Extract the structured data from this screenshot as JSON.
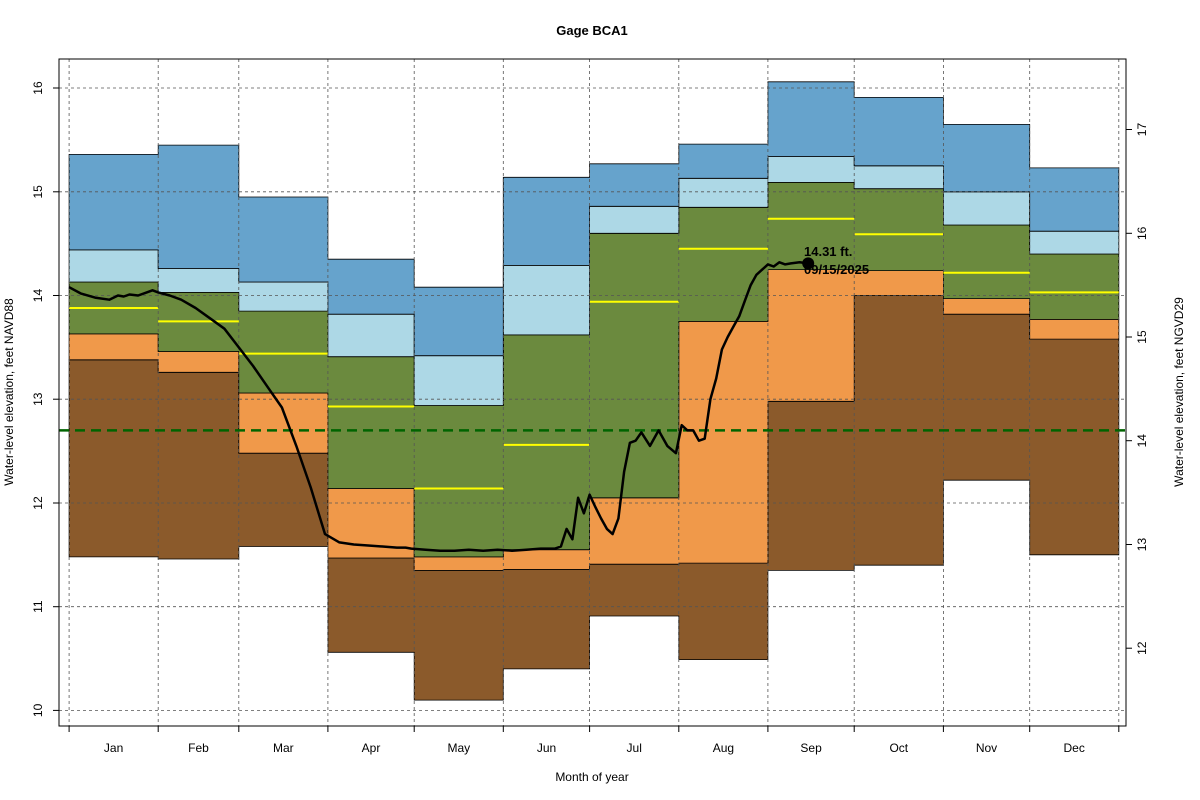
{
  "chart_data": {
    "type": "area",
    "title": "Gage BCA1",
    "xlabel": "Month of year",
    "ylabel": "Water-level elevation, feet NAVD88",
    "ylabel_right": "Water-level elevation, feet NGVD29",
    "categories": [
      "Jan",
      "Feb",
      "Mar",
      "Apr",
      "May",
      "Jun",
      "Jul",
      "Aug",
      "Sep",
      "Oct",
      "Nov",
      "Dec"
    ],
    "month_boundaries_doy": [
      1,
      32,
      60,
      91,
      121,
      152,
      182,
      213,
      244,
      274,
      305,
      335,
      366
    ],
    "ylim": [
      9.85,
      16.28
    ],
    "yticks": [
      10,
      11,
      12,
      13,
      14,
      15,
      16
    ],
    "y2_offset": 1.4,
    "y2ticks": [
      12,
      13,
      14,
      15,
      16,
      17
    ],
    "grid": true,
    "band_colors": [
      "#8b5a2b",
      "#f0994a",
      "#6b8a3e",
      "#add8e6",
      "#66a3cc"
    ],
    "median_color": "#ffff00",
    "reference_line": {
      "value": 12.7,
      "color": "#006400"
    },
    "bands": [
      {
        "month": "Jan",
        "b": [
          11.48,
          13.38,
          13.63,
          14.13,
          14.44,
          15.36
        ],
        "median": 13.88
      },
      {
        "month": "Feb",
        "b": [
          11.46,
          13.26,
          13.46,
          14.03,
          14.26,
          15.45
        ],
        "median": 13.75
      },
      {
        "month": "Mar",
        "b": [
          11.58,
          12.48,
          13.06,
          13.85,
          14.13,
          14.95
        ],
        "median": 13.44
      },
      {
        "month": "Apr",
        "b": [
          10.56,
          11.47,
          12.14,
          13.41,
          13.82,
          14.35
        ],
        "median": 12.93
      },
      {
        "month": "May",
        "b": [
          10.1,
          11.35,
          11.48,
          12.94,
          13.42,
          14.08
        ],
        "median": 12.14
      },
      {
        "month": "Jun",
        "b": [
          10.4,
          11.36,
          11.55,
          13.62,
          14.29,
          15.14
        ],
        "median": 12.56
      },
      {
        "month": "Jul",
        "b": [
          10.91,
          11.41,
          12.05,
          14.6,
          14.86,
          15.27
        ],
        "median": 13.94
      },
      {
        "month": "Aug",
        "b": [
          10.49,
          11.42,
          13.75,
          14.85,
          15.13,
          15.46
        ],
        "median": 14.45
      },
      {
        "month": "Sep",
        "b": [
          11.35,
          12.98,
          14.25,
          15.09,
          15.34,
          16.06
        ],
        "median": 14.74
      },
      {
        "month": "Oct",
        "b": [
          11.4,
          14.0,
          14.24,
          15.03,
          15.25,
          15.91
        ],
        "median": 14.59
      },
      {
        "month": "Nov",
        "b": [
          12.22,
          13.82,
          13.97,
          14.68,
          15.0,
          15.65
        ],
        "median": 14.22
      },
      {
        "month": "Dec",
        "b": [
          11.5,
          13.58,
          13.77,
          14.4,
          14.62,
          15.23
        ],
        "median": 14.03
      }
    ],
    "series": [
      {
        "x": [
          1,
          5,
          10,
          15,
          18,
          20,
          22,
          25,
          28,
          30,
          32,
          36,
          40,
          45,
          50,
          55,
          60,
          65,
          70,
          75,
          80,
          85,
          90,
          95,
          100,
          105,
          110,
          115,
          118,
          120,
          125,
          130,
          135,
          140,
          145,
          150,
          155,
          160,
          165,
          170,
          172,
          174,
          176,
          178,
          180,
          182,
          184,
          186,
          188,
          190,
          192,
          194,
          196,
          198,
          200,
          203,
          206,
          209,
          212,
          214,
          216,
          218,
          220,
          222,
          224,
          226,
          228,
          230,
          232,
          234,
          236,
          238,
          240,
          242,
          244,
          246,
          248,
          250,
          252,
          255,
          258
        ],
        "y": [
          14.08,
          14.02,
          13.98,
          13.96,
          14.0,
          13.99,
          14.01,
          14.0,
          14.03,
          14.05,
          14.03,
          14.0,
          13.96,
          13.88,
          13.78,
          13.68,
          13.5,
          13.32,
          13.12,
          12.92,
          12.55,
          12.15,
          11.7,
          11.62,
          11.6,
          11.59,
          11.58,
          11.57,
          11.57,
          11.56,
          11.55,
          11.54,
          11.54,
          11.55,
          11.54,
          11.55,
          11.54,
          11.55,
          11.56,
          11.56,
          11.58,
          11.75,
          11.65,
          12.05,
          11.9,
          12.08,
          11.96,
          11.85,
          11.75,
          11.7,
          11.85,
          12.3,
          12.58,
          12.6,
          12.68,
          12.55,
          12.7,
          12.55,
          12.48,
          12.75,
          12.7,
          12.7,
          12.6,
          12.62,
          13.0,
          13.2,
          13.48,
          13.6,
          13.7,
          13.8,
          13.95,
          14.1,
          14.2,
          14.25,
          14.3,
          14.28,
          14.32,
          14.3,
          14.31,
          14.32,
          14.31
        ]
      }
    ],
    "current_point": {
      "doy": 258,
      "value": 14.31
    },
    "annotation": {
      "value_label": "14.31 ft.",
      "date_label": "09/15/2025"
    }
  }
}
